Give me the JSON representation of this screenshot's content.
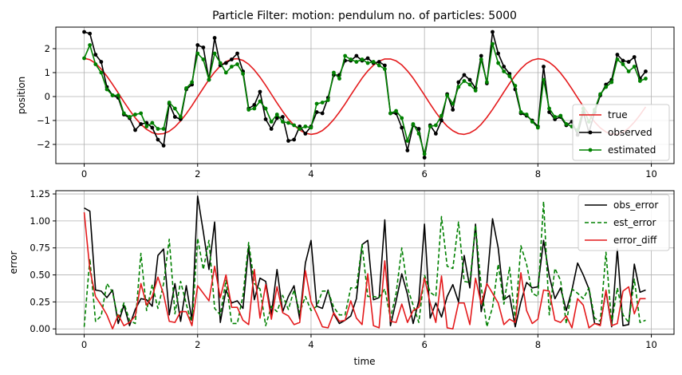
{
  "chart_data": [
    {
      "type": "line",
      "title": "Particle Filter: motion: pendulum no. of particles: 5000",
      "xlabel": "",
      "ylabel": "position",
      "xlim": [
        -0.5,
        10.4
      ],
      "ylim": [
        -2.8,
        2.9
      ],
      "xticks": [
        0,
        2,
        4,
        6,
        8,
        10
      ],
      "xtick_labels": [
        "0",
        "2",
        "4",
        "6",
        "8",
        "10"
      ],
      "yticks": [
        -2,
        -1,
        0,
        1,
        2
      ],
      "ytick_labels": [
        "−2",
        "−1",
        "0",
        "1",
        "2"
      ],
      "grid": true,
      "legend_position": "lower right",
      "x": [
        0,
        0.1,
        0.2,
        0.3,
        0.4,
        0.5,
        0.6,
        0.7,
        0.8,
        0.9,
        1.0,
        1.1,
        1.2,
        1.3,
        1.4,
        1.5,
        1.6,
        1.7,
        1.8,
        1.9,
        2.0,
        2.1,
        2.2,
        2.3,
        2.4,
        2.5,
        2.6,
        2.7,
        2.8,
        2.9,
        3.0,
        3.1,
        3.2,
        3.3,
        3.4,
        3.5,
        3.6,
        3.7,
        3.8,
        3.9,
        4.0,
        4.1,
        4.2,
        4.3,
        4.4,
        4.5,
        4.6,
        4.7,
        4.8,
        4.9,
        5.0,
        5.1,
        5.2,
        5.3,
        5.4,
        5.5,
        5.6,
        5.7,
        5.8,
        5.9,
        6.0,
        6.1,
        6.2,
        6.3,
        6.4,
        6.5,
        6.6,
        6.7,
        6.8,
        6.9,
        7.0,
        7.1,
        7.2,
        7.3,
        7.4,
        7.5,
        7.6,
        7.7,
        7.8,
        7.9,
        8.0,
        8.1,
        8.2,
        8.3,
        8.4,
        8.5,
        8.6,
        8.7,
        8.8,
        8.9,
        9.0,
        9.1,
        9.2,
        9.3,
        9.4,
        9.5,
        9.6,
        9.7,
        9.8,
        9.9
      ],
      "series": [
        {
          "name": "true",
          "color": "#e41a1c",
          "style": "line",
          "values": [
            1.6,
            1.54,
            1.39,
            1.15,
            0.85,
            0.51,
            0.15,
            -0.22,
            -0.57,
            -0.89,
            -1.16,
            -1.37,
            -1.51,
            -1.57,
            -1.55,
            -1.45,
            -1.27,
            -1.02,
            -0.72,
            -0.38,
            -0.01,
            0.35,
            0.71,
            1.02,
            1.28,
            1.46,
            1.56,
            1.58,
            1.51,
            1.35,
            1.11,
            0.81,
            0.47,
            0.1,
            -0.27,
            -0.62,
            -0.94,
            -1.2,
            -1.4,
            -1.53,
            -1.58,
            -1.54,
            -1.42,
            -1.22,
            -0.96,
            -0.65,
            -0.31,
            0.06,
            0.42,
            0.77,
            1.07,
            1.31,
            1.48,
            1.57,
            1.57,
            1.49,
            1.32,
            1.07,
            0.77,
            0.42,
            0.06,
            -0.31,
            -0.66,
            -0.98,
            -1.24,
            -1.43,
            -1.55,
            -1.58,
            -1.52,
            -1.38,
            -1.16,
            -0.87,
            -0.54,
            -0.18,
            0.19,
            0.55,
            0.88,
            1.16,
            1.38,
            1.52,
            1.58,
            1.55,
            1.43,
            1.24,
            0.98,
            0.67,
            0.32,
            -0.05,
            -0.41,
            -0.76,
            -1.06,
            -1.31,
            -1.48,
            -1.57,
            -1.57,
            -1.49,
            -1.32,
            -1.07,
            -0.77,
            -0.43
          ]
        },
        {
          "name": "observed",
          "color": "#000000",
          "style": "line-marker",
          "values": [
            2.7,
            2.63,
            1.75,
            1.45,
            0.4,
            0.05,
            -0.05,
            -0.75,
            -0.9,
            -1.4,
            -1.15,
            -1.1,
            -1.3,
            -1.8,
            -2.05,
            -0.3,
            -0.85,
            -0.95,
            0.3,
            0.5,
            2.15,
            2.05,
            0.7,
            2.45,
            1.3,
            1.4,
            1.55,
            1.8,
            1.05,
            -0.5,
            -0.35,
            0.2,
            -0.95,
            -1.35,
            -0.9,
            -0.85,
            -1.85,
            -1.8,
            -1.25,
            -1.55,
            -1.25,
            -0.65,
            -0.7,
            -0.05,
            0.9,
            0.9,
            1.5,
            1.5,
            1.7,
            1.5,
            1.6,
            1.4,
            1.45,
            1.3,
            -0.7,
            -0.7,
            -1.3,
            -2.25,
            -1.2,
            -1.35,
            -2.55,
            -1.2,
            -1.55,
            -1.0,
            0.1,
            -0.55,
            0.6,
            0.9,
            0.7,
            0.35,
            1.7,
            0.55,
            2.7,
            1.8,
            1.25,
            0.95,
            0.3,
            -0.7,
            -0.8,
            -1.0,
            -1.25,
            1.25,
            -0.65,
            -0.95,
            -0.85,
            -1.2,
            -1.05,
            -1.6,
            -0.65,
            -1.5,
            -0.65,
            0.05,
            0.5,
            0.7,
            1.75,
            1.5,
            1.45,
            1.65,
            0.75,
            1.05
          ]
        },
        {
          "name": "estimated",
          "color": "#008000",
          "style": "line-marker",
          "values": [
            1.6,
            2.15,
            1.35,
            1.0,
            0.3,
            0.05,
            0.05,
            -0.7,
            -0.85,
            -0.75,
            -0.7,
            -1.25,
            -1.1,
            -1.35,
            -1.35,
            -0.25,
            -0.5,
            -0.85,
            0.35,
            0.6,
            1.8,
            1.55,
            0.7,
            1.8,
            1.4,
            1.0,
            1.25,
            1.35,
            0.95,
            -0.55,
            -0.5,
            -0.2,
            -0.5,
            -1.05,
            -0.75,
            -1.05,
            -1.1,
            -1.2,
            -1.35,
            -1.25,
            -1.3,
            -0.3,
            -0.25,
            -0.15,
            1.0,
            0.75,
            1.7,
            1.55,
            1.45,
            1.55,
            1.4,
            1.45,
            1.3,
            1.15,
            -0.7,
            -0.6,
            -0.9,
            -1.85,
            -1.15,
            -1.55,
            -2.4,
            -1.25,
            -1.2,
            -0.8,
            0.05,
            -0.3,
            0.4,
            0.65,
            0.5,
            0.25,
            1.55,
            0.6,
            2.2,
            1.4,
            1.05,
            0.85,
            0.45,
            -0.65,
            -0.75,
            -1.05,
            -1.3,
            0.7,
            -0.5,
            -0.85,
            -0.8,
            -1.15,
            -1.25,
            -1.4,
            -0.5,
            -1.05,
            -0.55,
            0.1,
            0.4,
            0.6,
            1.55,
            1.35,
            1.05,
            1.25,
            0.65,
            0.75
          ]
        }
      ]
    },
    {
      "type": "line",
      "title": "",
      "xlabel": "time",
      "ylabel": "error",
      "xlim": [
        -0.5,
        10.4
      ],
      "ylim": [
        -0.05,
        1.28
      ],
      "xticks": [
        0,
        2,
        4,
        6,
        8,
        10
      ],
      "xtick_labels": [
        "0",
        "2",
        "4",
        "6",
        "8",
        "10"
      ],
      "yticks": [
        0.0,
        0.25,
        0.5,
        0.75,
        1.0,
        1.25
      ],
      "ytick_labels": [
        "0.00",
        "0.25",
        "0.50",
        "0.75",
        "1.00",
        "1.25"
      ],
      "grid": true,
      "legend_position": "upper right",
      "x": [
        0,
        0.1,
        0.2,
        0.3,
        0.4,
        0.5,
        0.6,
        0.7,
        0.8,
        0.9,
        1.0,
        1.1,
        1.2,
        1.3,
        1.4,
        1.5,
        1.6,
        1.7,
        1.8,
        1.9,
        2.0,
        2.1,
        2.2,
        2.3,
        2.4,
        2.5,
        2.6,
        2.7,
        2.8,
        2.9,
        3.0,
        3.1,
        3.2,
        3.3,
        3.4,
        3.5,
        3.6,
        3.7,
        3.8,
        3.9,
        4.0,
        4.1,
        4.2,
        4.3,
        4.4,
        4.5,
        4.6,
        4.7,
        4.8,
        4.9,
        5.0,
        5.1,
        5.2,
        5.3,
        5.4,
        5.5,
        5.6,
        5.7,
        5.8,
        5.9,
        6.0,
        6.1,
        6.2,
        6.3,
        6.4,
        6.5,
        6.6,
        6.7,
        6.8,
        6.9,
        7.0,
        7.1,
        7.2,
        7.3,
        7.4,
        7.5,
        7.6,
        7.7,
        7.8,
        7.9,
        8.0,
        8.1,
        8.2,
        8.3,
        8.4,
        8.5,
        8.6,
        8.7,
        8.8,
        8.9,
        9.0,
        9.1,
        9.2,
        9.3,
        9.4,
        9.5,
        9.6,
        9.7,
        9.8,
        9.9
      ],
      "series": [
        {
          "name": "obs_error",
          "color": "#000000",
          "style": "solid",
          "values": [
            1.12,
            1.09,
            0.36,
            0.35,
            0.29,
            0.36,
            0.05,
            0.22,
            0.03,
            0.18,
            0.28,
            0.27,
            0.21,
            0.68,
            0.74,
            0.13,
            0.42,
            0.07,
            0.4,
            0.08,
            1.23,
            0.9,
            0.55,
            0.99,
            0.06,
            0.36,
            0.24,
            0.26,
            0.19,
            0.76,
            0.27,
            0.47,
            0.44,
            0.13,
            0.55,
            0.16,
            0.3,
            0.4,
            0.09,
            0.61,
            0.82,
            0.21,
            0.19,
            0.36,
            0.14,
            0.05,
            0.08,
            0.12,
            0.28,
            0.78,
            0.82,
            0.27,
            0.29,
            1.01,
            0.03,
            0.26,
            0.51,
            0.32,
            0.05,
            0.26,
            0.97,
            0.1,
            0.24,
            0.11,
            0.3,
            0.41,
            0.25,
            0.68,
            0.38,
            0.97,
            0.16,
            0.42,
            1.02,
            0.75,
            0.27,
            0.31,
            0.02,
            0.25,
            0.43,
            0.38,
            0.39,
            0.82,
            0.49,
            0.28,
            0.38,
            0.17,
            0.36,
            0.61,
            0.5,
            0.37,
            0.05,
            0.04,
            0.35,
            0.02,
            0.74,
            0.03,
            0.04,
            0.6,
            0.34,
            0.36
          ]
        },
        {
          "name": "est_error",
          "color": "#008000",
          "style": "dashed",
          "values": [
            0.02,
            0.65,
            0.07,
            0.12,
            0.42,
            0.34,
            0.09,
            0.24,
            0.08,
            0.05,
            0.7,
            0.17,
            0.41,
            0.19,
            0.42,
            0.83,
            0.14,
            0.44,
            0.23,
            0.04,
            0.84,
            0.55,
            0.82,
            0.19,
            0.13,
            0.45,
            0.05,
            0.05,
            0.31,
            0.8,
            0.42,
            0.37,
            0.03,
            0.21,
            0.16,
            0.31,
            0.18,
            0.36,
            0.15,
            0.3,
            0.17,
            0.21,
            0.35,
            0.35,
            0.2,
            0.13,
            0.13,
            0.38,
            0.38,
            0.78,
            0.3,
            0.3,
            0.29,
            0.37,
            0.1,
            0.33,
            0.75,
            0.38,
            0.22,
            0.06,
            0.5,
            0.34,
            0.3,
            1.04,
            0.58,
            0.56,
            0.99,
            0.44,
            0.43,
            0.96,
            0.39,
            0.02,
            0.2,
            0.6,
            0.23,
            0.57,
            0.08,
            0.77,
            0.6,
            0.33,
            0.3,
            1.18,
            0.13,
            0.56,
            0.45,
            0.05,
            0.37,
            0.33,
            0.28,
            0.38,
            0.1,
            0.07,
            0.71,
            0.05,
            0.38,
            0.13,
            0.06,
            0.46,
            0.06,
            0.08
          ]
        },
        {
          "name": "error_diff",
          "color": "#e41a1c",
          "style": "solid",
          "values": [
            1.08,
            0.55,
            0.3,
            0.22,
            0.13,
            0.0,
            0.13,
            0.03,
            0.06,
            0.12,
            0.42,
            0.22,
            0.3,
            0.48,
            0.32,
            0.07,
            0.06,
            0.16,
            0.16,
            0.03,
            0.4,
            0.33,
            0.26,
            0.58,
            0.29,
            0.5,
            0.2,
            0.2,
            0.08,
            0.04,
            0.55,
            0.1,
            0.41,
            0.09,
            0.39,
            0.15,
            0.12,
            0.04,
            0.06,
            0.54,
            0.25,
            0.14,
            0.02,
            0.01,
            0.15,
            0.07,
            0.08,
            0.26,
            0.1,
            0.04,
            0.51,
            0.03,
            0.01,
            0.63,
            0.07,
            0.06,
            0.23,
            0.06,
            0.17,
            0.2,
            0.47,
            0.24,
            0.06,
            0.49,
            0.01,
            0.0,
            0.24,
            0.24,
            0.04,
            0.47,
            0.23,
            0.42,
            0.33,
            0.24,
            0.04,
            0.09,
            0.06,
            0.52,
            0.17,
            0.05,
            0.09,
            0.36,
            0.35,
            0.08,
            0.06,
            0.12,
            0.01,
            0.28,
            0.22,
            0.01,
            0.05,
            0.03,
            0.36,
            0.03,
            0.05,
            0.35,
            0.39,
            0.14,
            0.28,
            0.28
          ]
        }
      ]
    }
  ]
}
